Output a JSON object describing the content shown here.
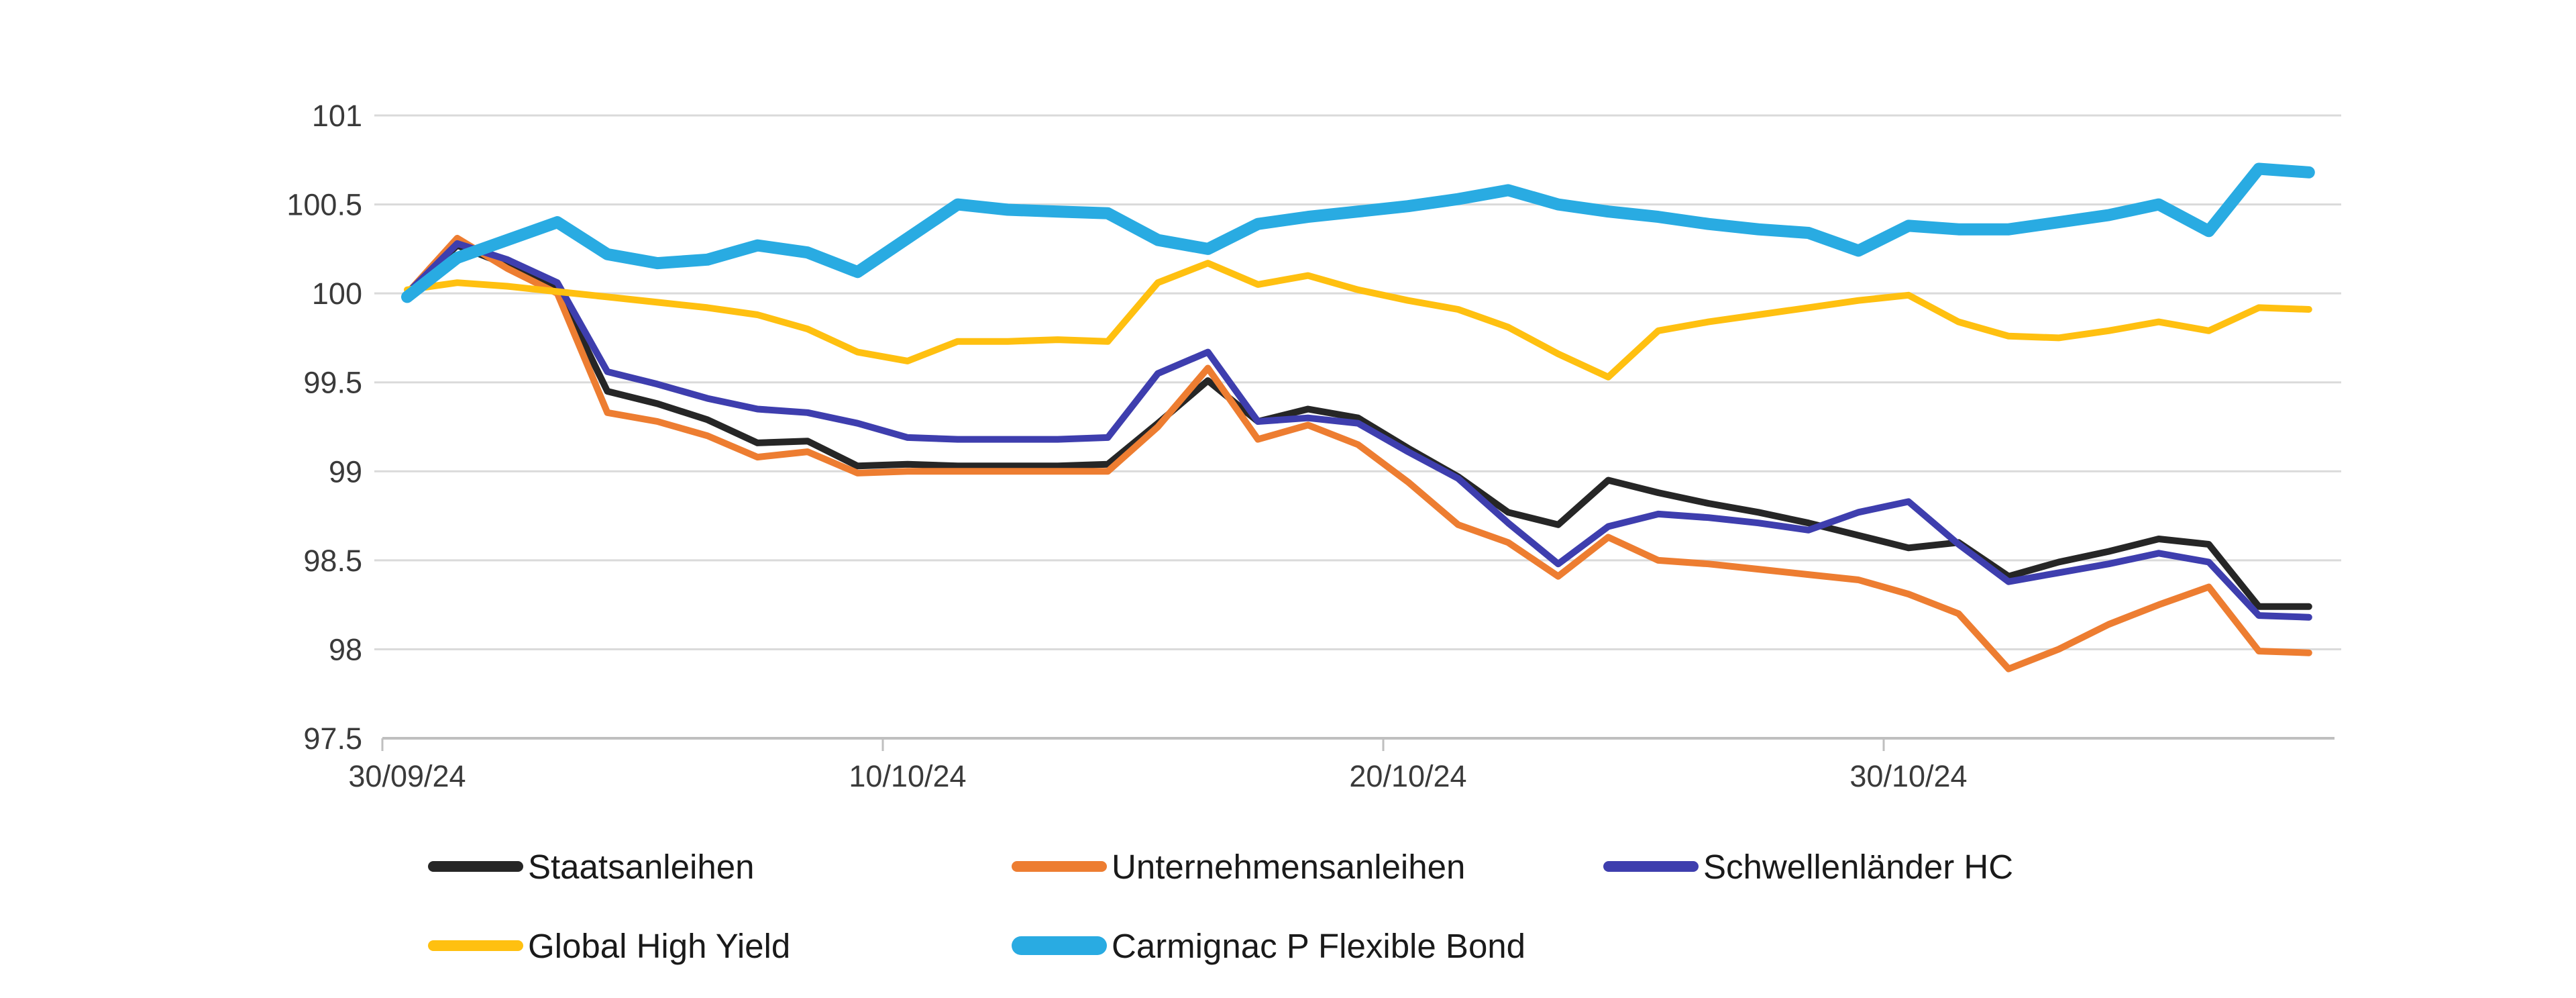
{
  "chart_data": {
    "type": "line",
    "title": "",
    "xlabel": "",
    "ylabel": "",
    "grid": "horizontal",
    "legend_position": "bottom",
    "x_tick_labels": [
      "30/09/24",
      "10/10/24",
      "20/10/24",
      "30/10/24"
    ],
    "x_tick_indices": [
      0,
      10,
      20,
      30
    ],
    "n_points": 39,
    "y_axis": {
      "min": 97.5,
      "max": 101,
      "step": 0.5,
      "labels": [
        "101",
        "100.5",
        "100",
        "99.5",
        "99",
        "98.5",
        "98",
        "97.5"
      ]
    },
    "axis_color": "#bfbfbf",
    "gridline_color": "#dadada",
    "label_color": "#3a3a3a",
    "series": [
      {
        "name": "Staatsanleihen",
        "color": "#262626",
        "values": [
          100.0,
          100.27,
          100.16,
          100.03,
          99.45,
          99.38,
          99.29,
          99.16,
          99.17,
          99.03,
          99.04,
          99.03,
          99.03,
          99.03,
          99.04,
          99.27,
          99.51,
          99.28,
          99.35,
          99.3,
          99.13,
          98.97,
          98.77,
          98.7,
          98.95,
          98.88,
          98.82,
          98.77,
          98.71,
          98.64,
          98.57,
          98.6,
          98.41,
          98.49,
          98.55,
          98.62,
          98.59,
          98.24,
          98.24
        ]
      },
      {
        "name": "Unternehmensanleihen",
        "color": "#ed7d31",
        "values": [
          100.0,
          100.31,
          100.14,
          100.0,
          99.33,
          99.28,
          99.2,
          99.08,
          99.11,
          98.99,
          99.0,
          99.0,
          99.0,
          99.0,
          99.0,
          99.25,
          99.58,
          99.18,
          99.26,
          99.15,
          98.94,
          98.7,
          98.6,
          98.41,
          98.63,
          98.5,
          98.48,
          98.45,
          98.42,
          98.39,
          98.31,
          98.2,
          97.89,
          98.0,
          98.14,
          98.25,
          98.35,
          97.99,
          97.98
        ]
      },
      {
        "name": "Schwellenländer HC",
        "color": "#3e3eae",
        "values": [
          100.0,
          100.28,
          100.19,
          100.06,
          99.56,
          99.49,
          99.41,
          99.35,
          99.33,
          99.27,
          99.19,
          99.18,
          99.18,
          99.18,
          99.19,
          99.55,
          99.67,
          99.28,
          99.3,
          99.27,
          99.11,
          98.96,
          98.71,
          98.48,
          98.69,
          98.76,
          98.74,
          98.71,
          98.67,
          98.77,
          98.83,
          98.59,
          98.38,
          98.43,
          98.48,
          98.54,
          98.49,
          98.19,
          98.18
        ]
      },
      {
        "name": "Global High Yield",
        "color": "#ffc010",
        "values": [
          100.02,
          100.06,
          100.04,
          100.01,
          99.98,
          99.95,
          99.92,
          99.88,
          99.8,
          99.67,
          99.62,
          99.73,
          99.73,
          99.74,
          99.73,
          100.06,
          100.17,
          100.05,
          100.1,
          100.02,
          99.96,
          99.91,
          99.81,
          99.66,
          99.53,
          99.79,
          99.84,
          99.88,
          99.92,
          99.96,
          99.99,
          99.84,
          99.76,
          99.75,
          99.79,
          99.84,
          99.79,
          99.92,
          99.91
        ]
      },
      {
        "name": "Carmignac P Flexible Bond",
        "color": "#29abe2",
        "values": [
          99.98,
          100.2,
          100.3,
          100.4,
          100.22,
          100.17,
          100.19,
          100.27,
          100.23,
          100.12,
          100.31,
          100.5,
          100.47,
          100.46,
          100.45,
          100.3,
          100.25,
          100.39,
          100.43,
          100.46,
          100.49,
          100.53,
          100.58,
          100.5,
          100.46,
          100.43,
          100.39,
          100.36,
          100.34,
          100.24,
          100.38,
          100.36,
          100.36,
          100.4,
          100.44,
          100.5,
          100.35,
          100.7,
          100.68
        ]
      }
    ]
  }
}
